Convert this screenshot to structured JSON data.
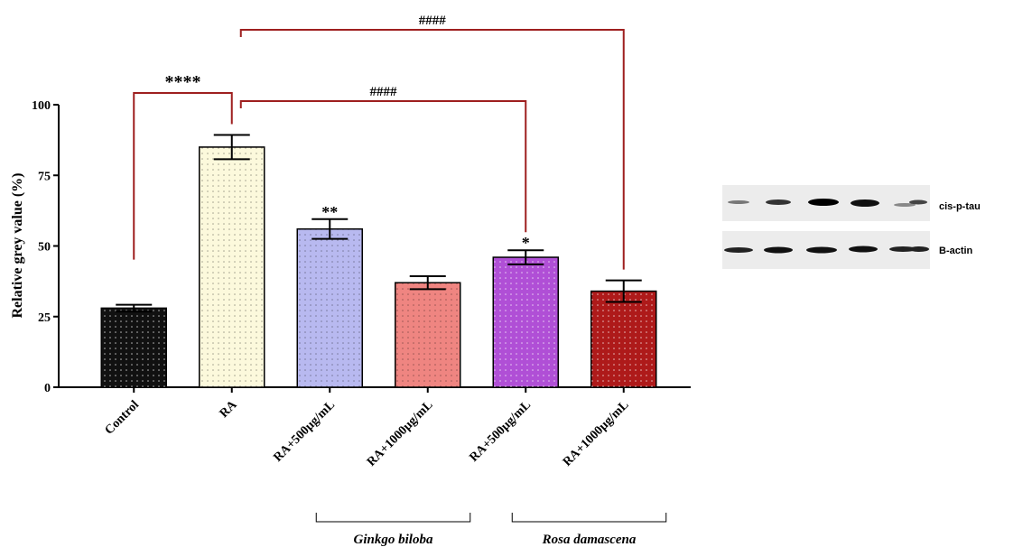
{
  "chart_data": {
    "type": "bar",
    "ylabel": "Relative grey value (%)",
    "categories": [
      "Control",
      "RA",
      "RA+500µg/mL",
      "RA+1000µg/mL",
      "RA+500µg/mL",
      "RA+1000µg/mL"
    ],
    "values": [
      28,
      85,
      56,
      37,
      46,
      34
    ],
    "errors": [
      1.2,
      4.3,
      3.5,
      2.3,
      2.5,
      3.8
    ],
    "colors": [
      "#111111",
      "#fcf9dc",
      "#b8b9f0",
      "#ef8581",
      "#b04fd6",
      "#ae1a1a"
    ],
    "ylim": [
      0,
      100
    ],
    "yticks": [
      0,
      25,
      50,
      75,
      100
    ],
    "brackets": [
      {
        "from": 0,
        "to": 1,
        "label": "****"
      },
      {
        "from": 1,
        "to": 4,
        "label": "####"
      },
      {
        "from": 1,
        "to": 5,
        "label": "####"
      }
    ],
    "bar_marks": [
      {
        "bar": 2,
        "label": "**"
      },
      {
        "bar": 4,
        "label": "*"
      }
    ],
    "groups": [
      {
        "from": 2,
        "to": 3,
        "label": "Ginkgo biloba"
      },
      {
        "from": 4,
        "to": 5,
        "label": "Rosa damascena"
      }
    ]
  },
  "blot": {
    "rows": [
      "cis-p-tau",
      "B-actin"
    ]
  }
}
